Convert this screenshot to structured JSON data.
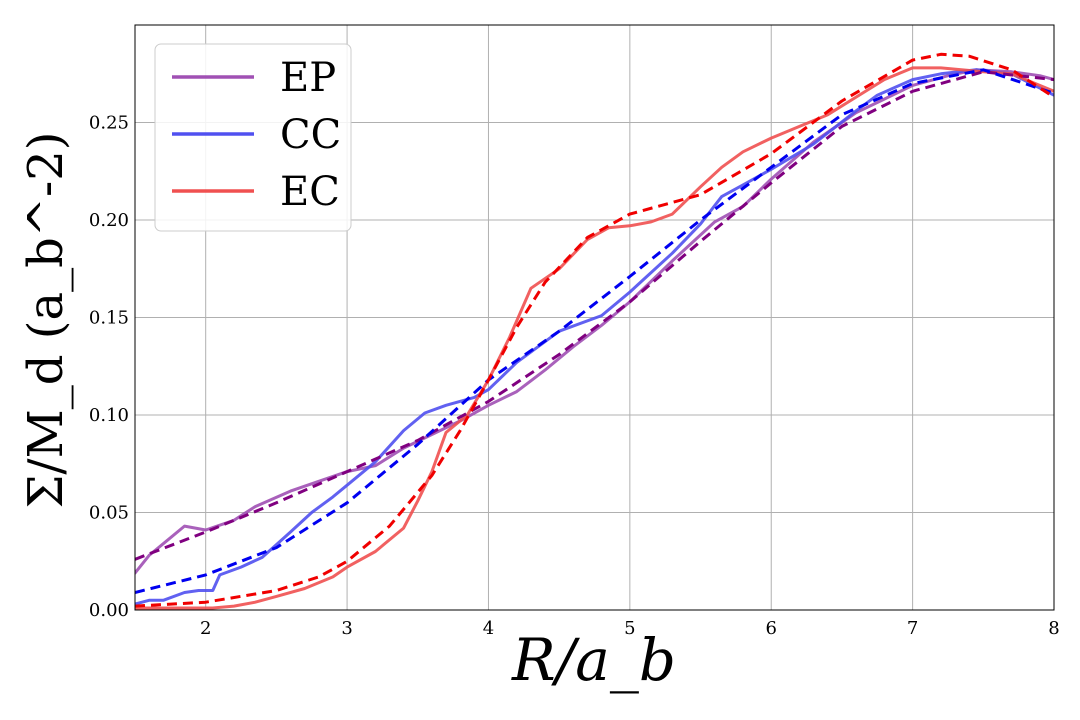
{
  "chart_data": {
    "type": "line",
    "xlabel": "R/a_b",
    "ylabel": "Σ/M_d (a_b^-2)",
    "xlim": [
      1.5,
      8
    ],
    "ylim": [
      0,
      0.3
    ],
    "xticks": [
      2,
      3,
      4,
      5,
      6,
      7,
      8
    ],
    "yticks": [
      0.0,
      0.05,
      0.1,
      0.15,
      0.2,
      0.25
    ],
    "ytick_labels": [
      "0.00",
      "0.05",
      "0.10",
      "0.15",
      "0.20",
      "0.25"
    ],
    "grid": true,
    "legend_position": "top-left",
    "series": [
      {
        "name": "EP",
        "color": "#a050b4",
        "style": "solid",
        "x": [
          1.5,
          1.6,
          1.7,
          1.85,
          2.0,
          2.2,
          2.35,
          2.6,
          2.8,
          3.0,
          3.2,
          3.4,
          3.6,
          3.8,
          4.0,
          4.2,
          4.4,
          4.6,
          4.8,
          5.0,
          5.3,
          5.6,
          5.8,
          6.0,
          6.3,
          6.6,
          6.8,
          7.0,
          7.25,
          7.45,
          7.7,
          7.9,
          8.0
        ],
        "values": [
          0.019,
          0.028,
          0.034,
          0.043,
          0.041,
          0.046,
          0.053,
          0.061,
          0.066,
          0.071,
          0.074,
          0.083,
          0.09,
          0.097,
          0.105,
          0.112,
          0.123,
          0.135,
          0.146,
          0.158,
          0.179,
          0.199,
          0.207,
          0.221,
          0.24,
          0.255,
          0.262,
          0.269,
          0.274,
          0.277,
          0.276,
          0.274,
          0.272
        ]
      },
      {
        "name": "CC",
        "color": "#5050f0",
        "style": "solid",
        "x": [
          1.5,
          1.6,
          1.7,
          1.85,
          1.95,
          2.05,
          2.1,
          2.25,
          2.4,
          2.6,
          2.75,
          2.9,
          3.0,
          3.2,
          3.4,
          3.55,
          3.7,
          3.9,
          4.0,
          4.2,
          4.5,
          4.8,
          5.0,
          5.3,
          5.5,
          5.65,
          5.8,
          6.0,
          6.3,
          6.6,
          6.75,
          7.0,
          7.2,
          7.45,
          7.7,
          8.0
        ],
        "values": [
          0.003,
          0.005,
          0.005,
          0.009,
          0.01,
          0.01,
          0.018,
          0.022,
          0.027,
          0.04,
          0.05,
          0.058,
          0.064,
          0.076,
          0.092,
          0.101,
          0.105,
          0.109,
          0.113,
          0.127,
          0.143,
          0.151,
          0.163,
          0.183,
          0.198,
          0.212,
          0.218,
          0.226,
          0.239,
          0.256,
          0.264,
          0.272,
          0.275,
          0.277,
          0.275,
          0.264
        ]
      },
      {
        "name": "EC",
        "color": "#f05050",
        "style": "solid",
        "x": [
          1.5,
          1.7,
          1.9,
          2.05,
          2.2,
          2.35,
          2.5,
          2.7,
          2.9,
          3.0,
          3.2,
          3.4,
          3.5,
          3.6,
          3.7,
          3.85,
          4.0,
          4.15,
          4.3,
          4.5,
          4.7,
          4.85,
          5.0,
          5.15,
          5.3,
          5.5,
          5.65,
          5.8,
          6.0,
          6.2,
          6.4,
          6.6,
          6.8,
          7.0,
          7.2,
          7.5,
          7.7,
          8.0
        ],
        "values": [
          0.001,
          0.001,
          0.001,
          0.001,
          0.002,
          0.004,
          0.007,
          0.011,
          0.017,
          0.022,
          0.03,
          0.042,
          0.056,
          0.071,
          0.091,
          0.1,
          0.118,
          0.14,
          0.165,
          0.175,
          0.19,
          0.196,
          0.197,
          0.199,
          0.203,
          0.217,
          0.227,
          0.235,
          0.242,
          0.248,
          0.254,
          0.263,
          0.272,
          0.278,
          0.278,
          0.276,
          0.275,
          0.266
        ]
      },
      {
        "name": "EP fit",
        "color": "#800080",
        "style": "dashed",
        "x": [
          1.5,
          2.0,
          2.5,
          3.0,
          3.5,
          4.0,
          4.5,
          5.0,
          5.5,
          6.0,
          6.5,
          7.0,
          7.5,
          8.0
        ],
        "values": [
          0.026,
          0.04,
          0.055,
          0.071,
          0.087,
          0.107,
          0.131,
          0.158,
          0.189,
          0.219,
          0.248,
          0.266,
          0.276,
          0.272
        ]
      },
      {
        "name": "CC fit",
        "color": "#0000f0",
        "style": "dashed",
        "x": [
          1.5,
          2.0,
          2.5,
          3.0,
          3.5,
          4.0,
          4.5,
          5.0,
          5.5,
          6.0,
          6.5,
          7.0,
          7.5,
          8.0
        ],
        "values": [
          0.009,
          0.018,
          0.032,
          0.055,
          0.085,
          0.118,
          0.143,
          0.171,
          0.2,
          0.227,
          0.254,
          0.27,
          0.277,
          0.265
        ]
      },
      {
        "name": "EC fit",
        "color": "#f00000",
        "style": "dashed",
        "x": [
          1.5,
          2.0,
          2.5,
          2.8,
          3.0,
          3.3,
          3.6,
          3.8,
          4.0,
          4.2,
          4.4,
          4.7,
          5.0,
          5.5,
          6.0,
          6.5,
          7.0,
          7.2,
          7.4,
          7.7,
          8.0
        ],
        "values": [
          0.002,
          0.004,
          0.01,
          0.017,
          0.025,
          0.043,
          0.069,
          0.092,
          0.118,
          0.145,
          0.168,
          0.191,
          0.203,
          0.213,
          0.234,
          0.261,
          0.282,
          0.285,
          0.284,
          0.277,
          0.263
        ]
      }
    ],
    "legend": [
      {
        "label": "EP",
        "color": "#a050b4"
      },
      {
        "label": "CC",
        "color": "#5050f0"
      },
      {
        "label": "EC",
        "color": "#f05050"
      }
    ]
  }
}
